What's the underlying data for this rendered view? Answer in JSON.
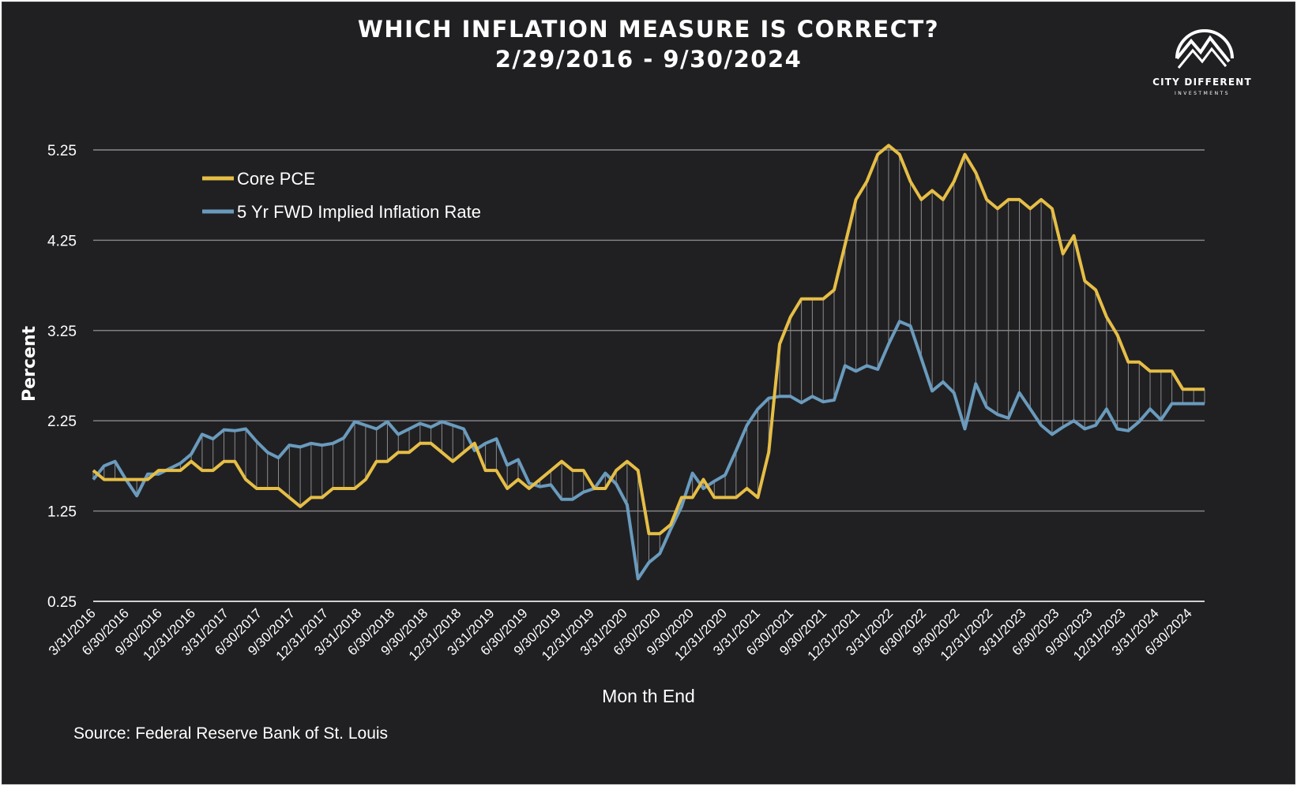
{
  "title_line1": "WHICH INFLATION MEASURE IS CORRECT?",
  "title_line2": "2/29/2016 - 9/30/2024",
  "logo": {
    "name": "CITY DIFFERENT",
    "sub": "INVESTMENTS"
  },
  "source": "Source: Federal Reserve Bank of St. Louis",
  "colors": {
    "background": "#202023",
    "core_pce": "#e6be46",
    "fwd_inflation": "#6a9bbd",
    "grid": "#8a8a8e",
    "text": "#ffffff"
  },
  "chart_data": {
    "type": "line",
    "ylabel": "Percent",
    "xlabel": "Mon th End",
    "ylim": [
      0.25,
      5.25
    ],
    "yticks": [
      "0.25",
      "1.25",
      "2.25",
      "3.25",
      "4.25",
      "5.25"
    ],
    "grid": true,
    "legend_position": "top-left",
    "x_tick_labels": [
      "3/31/2016",
      "6/30/2016",
      "9/30/2016",
      "12/31/2016",
      "3/31/2017",
      "6/30/2017",
      "9/30/2017",
      "12/31/2017",
      "3/31/2018",
      "6/30/2018",
      "9/30/2018",
      "12/31/2018",
      "3/31/2019",
      "6/30/2019",
      "9/30/2019",
      "12/31/2019",
      "3/31/2020",
      "6/30/2020",
      "9/30/2020",
      "12/31/2020",
      "3/31/2021",
      "6/30/2021",
      "9/30/2021",
      "12/31/2021",
      "3/31/2022",
      "6/30/2022",
      "9/30/2022",
      "12/31/2022",
      "3/31/2023",
      "6/30/2023",
      "9/30/2023",
      "12/31/2023",
      "3/31/2024",
      "6/30/2024"
    ],
    "x_start": "2/29/2016",
    "x_end": "9/30/2024",
    "series": [
      {
        "name": "Core PCE",
        "values": [
          1.7,
          1.6,
          1.6,
          1.6,
          1.6,
          1.6,
          1.7,
          1.7,
          1.7,
          1.8,
          1.7,
          1.7,
          1.8,
          1.8,
          1.6,
          1.5,
          1.5,
          1.5,
          1.4,
          1.3,
          1.4,
          1.4,
          1.5,
          1.5,
          1.5,
          1.6,
          1.8,
          1.8,
          1.9,
          1.9,
          2.0,
          2.0,
          1.9,
          1.8,
          1.9,
          2.0,
          1.7,
          1.7,
          1.5,
          1.6,
          1.5,
          1.6,
          1.7,
          1.8,
          1.7,
          1.7,
          1.5,
          1.5,
          1.7,
          1.8,
          1.7,
          1.0,
          1.0,
          1.1,
          1.4,
          1.4,
          1.6,
          1.4,
          1.4,
          1.4,
          1.5,
          1.4,
          1.9,
          3.1,
          3.4,
          3.6,
          3.6,
          3.6,
          3.7,
          4.2,
          4.7,
          4.9,
          5.2,
          5.3,
          5.2,
          4.9,
          4.7,
          4.8,
          4.7,
          4.9,
          5.2,
          5.0,
          4.7,
          4.6,
          4.7,
          4.7,
          4.6,
          4.7,
          4.6,
          4.1,
          4.3,
          3.8,
          3.7,
          3.4,
          3.2,
          2.9,
          2.9,
          2.8,
          2.8,
          2.8,
          2.6,
          2.6,
          2.6
        ]
      },
      {
        "name": "5 Yr FWD Implied Inflation Rate",
        "values": [
          1.6,
          1.75,
          1.8,
          1.6,
          1.42,
          1.66,
          1.66,
          1.72,
          1.78,
          1.88,
          2.1,
          2.05,
          2.15,
          2.14,
          2.16,
          2.02,
          1.9,
          1.84,
          1.98,
          1.96,
          2.0,
          1.98,
          2.0,
          2.06,
          2.24,
          2.2,
          2.16,
          2.24,
          2.1,
          2.16,
          2.22,
          2.18,
          2.24,
          2.2,
          2.16,
          1.92,
          2.0,
          2.05,
          1.76,
          1.82,
          1.56,
          1.52,
          1.54,
          1.38,
          1.38,
          1.46,
          1.5,
          1.67,
          1.55,
          1.32,
          0.5,
          0.68,
          0.78,
          1.05,
          1.3,
          1.67,
          1.5,
          1.58,
          1.65,
          1.92,
          2.2,
          2.38,
          2.5,
          2.52,
          2.52,
          2.45,
          2.52,
          2.46,
          2.48,
          2.86,
          2.8,
          2.86,
          2.82,
          3.1,
          3.35,
          3.3,
          2.94,
          2.58,
          2.68,
          2.56,
          2.16,
          2.66,
          2.4,
          2.32,
          2.28,
          2.56,
          2.38,
          2.2,
          2.1,
          2.18,
          2.25,
          2.16,
          2.2,
          2.38,
          2.16,
          2.14,
          2.24,
          2.38,
          2.26,
          2.44,
          2.44,
          2.44,
          2.44
        ]
      }
    ]
  }
}
